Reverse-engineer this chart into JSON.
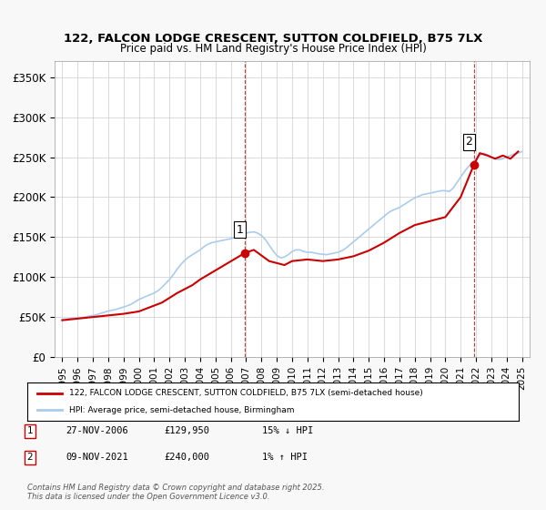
{
  "title1": "122, FALCON LODGE CRESCENT, SUTTON COLDFIELD, B75 7LX",
  "title2": "Price paid vs. HM Land Registry's House Price Index (HPI)",
  "ylabel": "",
  "ylim": [
    0,
    370000
  ],
  "yticks": [
    0,
    50000,
    100000,
    150000,
    200000,
    250000,
    300000,
    350000
  ],
  "ytick_labels": [
    "£0",
    "£50K",
    "£100K",
    "£150K",
    "£200K",
    "£250K",
    "£300K",
    "£350K"
  ],
  "xlim_start": 1994.5,
  "xlim_end": 2025.5,
  "background_color": "#f8f8f8",
  "plot_bg_color": "#ffffff",
  "grid_color": "#cccccc",
  "red_line_color": "#cc0000",
  "blue_line_color": "#aaccee",
  "dashed_line_color": "#cc0000",
  "marker1_x": 2006.9,
  "marker1_y": 129950,
  "marker2_x": 2021.85,
  "marker2_y": 240000,
  "legend_label_red": "122, FALCON LODGE CRESCENT, SUTTON COLDFIELD, B75 7LX (semi-detached house)",
  "legend_label_blue": "HPI: Average price, semi-detached house, Birmingham",
  "table_data": [
    {
      "num": "1",
      "date": "27-NOV-2006",
      "price": "£129,950",
      "hpi": "15% ↓ HPI"
    },
    {
      "num": "2",
      "date": "09-NOV-2021",
      "price": "£240,000",
      "hpi": "1% ↑ HPI"
    }
  ],
  "footnote": "Contains HM Land Registry data © Crown copyright and database right 2025.\nThis data is licensed under the Open Government Licence v3.0.",
  "hpi_data": {
    "years": [
      1995.0,
      1995.25,
      1995.5,
      1995.75,
      1996.0,
      1996.25,
      1996.5,
      1996.75,
      1997.0,
      1997.25,
      1997.5,
      1997.75,
      1998.0,
      1998.25,
      1998.5,
      1998.75,
      1999.0,
      1999.25,
      1999.5,
      1999.75,
      2000.0,
      2000.25,
      2000.5,
      2000.75,
      2001.0,
      2001.25,
      2001.5,
      2001.75,
      2002.0,
      2002.25,
      2002.5,
      2002.75,
      2003.0,
      2003.25,
      2003.5,
      2003.75,
      2004.0,
      2004.25,
      2004.5,
      2004.75,
      2005.0,
      2005.25,
      2005.5,
      2005.75,
      2006.0,
      2006.25,
      2006.5,
      2006.75,
      2007.0,
      2007.25,
      2007.5,
      2007.75,
      2008.0,
      2008.25,
      2008.5,
      2008.75,
      2009.0,
      2009.25,
      2009.5,
      2009.75,
      2010.0,
      2010.25,
      2010.5,
      2010.75,
      2011.0,
      2011.25,
      2011.5,
      2011.75,
      2012.0,
      2012.25,
      2012.5,
      2012.75,
      2013.0,
      2013.25,
      2013.5,
      2013.75,
      2014.0,
      2014.25,
      2014.5,
      2014.75,
      2015.0,
      2015.25,
      2015.5,
      2015.75,
      2016.0,
      2016.25,
      2016.5,
      2016.75,
      2017.0,
      2017.25,
      2017.5,
      2017.75,
      2018.0,
      2018.25,
      2018.5,
      2018.75,
      2019.0,
      2019.25,
      2019.5,
      2019.75,
      2020.0,
      2020.25,
      2020.5,
      2020.75,
      2021.0,
      2021.25,
      2021.5,
      2021.75,
      2022.0,
      2022.25,
      2022.5,
      2022.75,
      2023.0,
      2023.25,
      2023.5,
      2023.75,
      2024.0,
      2024.25,
      2024.5,
      2024.75,
      2025.0
    ],
    "values": [
      47000,
      47500,
      48000,
      48500,
      49000,
      49500,
      50000,
      51000,
      52000,
      53000,
      54500,
      56000,
      57500,
      58500,
      59500,
      61000,
      62500,
      64000,
      66000,
      69000,
      72000,
      74000,
      76000,
      78000,
      80000,
      83000,
      87000,
      92000,
      97000,
      103000,
      110000,
      116000,
      121000,
      125000,
      128000,
      131000,
      134000,
      138000,
      141000,
      143000,
      144000,
      145000,
      146000,
      147000,
      148000,
      149500,
      151000,
      153000,
      155000,
      156000,
      156500,
      155000,
      152000,
      147000,
      140000,
      133000,
      127000,
      124000,
      125000,
      128000,
      132000,
      134000,
      134000,
      132000,
      131000,
      131000,
      130000,
      129000,
      128500,
      128000,
      129000,
      130000,
      131000,
      133000,
      136000,
      140000,
      144000,
      148000,
      152000,
      156000,
      160000,
      164000,
      168000,
      172000,
      176000,
      180000,
      183000,
      185000,
      187000,
      190000,
      193000,
      196000,
      199000,
      201000,
      203000,
      204000,
      205000,
      206000,
      207000,
      208000,
      208000,
      207000,
      211000,
      218000,
      225000,
      232000,
      238000,
      243000,
      248000,
      252000,
      255000,
      253000,
      250000,
      248000,
      247000,
      248000,
      250000,
      252000,
      254000,
      255000,
      257000
    ]
  },
  "price_data": {
    "years": [
      1995.0,
      1995.5,
      1996.5,
      1997.5,
      1998.0,
      1999.0,
      2000.0,
      2001.5,
      2002.5,
      2003.5,
      2004.0,
      2006.9,
      2007.5,
      2008.5,
      2009.5,
      2010.0,
      2011.0,
      2012.0,
      2013.0,
      2014.0,
      2015.0,
      2016.0,
      2017.0,
      2018.0,
      2019.0,
      2020.0,
      2021.0,
      2021.85,
      2022.25,
      2022.75,
      2023.25,
      2023.75,
      2024.25,
      2024.75
    ],
    "values": [
      46000,
      47000,
      49000,
      51000,
      52000,
      54000,
      57000,
      68000,
      80000,
      90000,
      97000,
      129950,
      134000,
      120000,
      115000,
      120000,
      122000,
      120000,
      122000,
      126000,
      133000,
      143000,
      155000,
      165000,
      170000,
      175000,
      200000,
      240000,
      255000,
      252000,
      248000,
      252000,
      248000,
      257000
    ]
  }
}
